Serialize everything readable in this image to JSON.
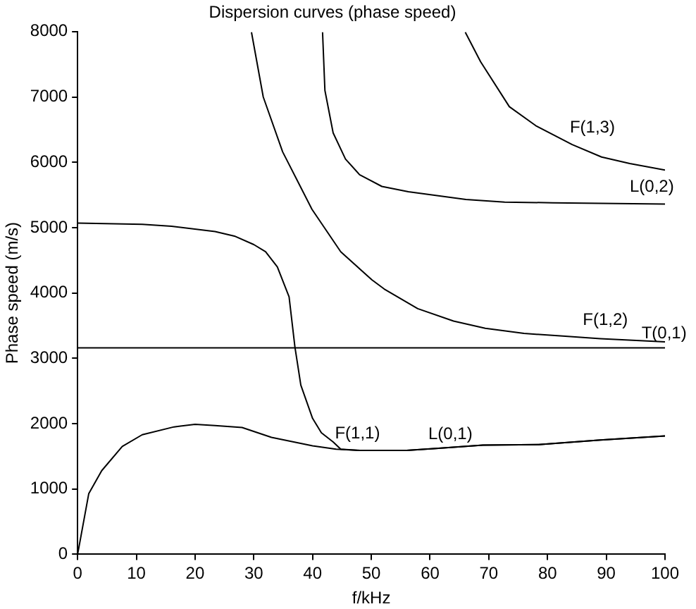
{
  "chart_data": {
    "type": "line",
    "title": "Dispersion curves (phase speed)",
    "xlabel": "f/kHz",
    "ylabel": "Phase speed (m/s)",
    "xlim": [
      0,
      100
    ],
    "ylim": [
      0,
      8000
    ],
    "xticks": [
      0,
      10,
      20,
      30,
      40,
      50,
      60,
      70,
      80,
      90,
      100
    ],
    "yticks": [
      0,
      1000,
      2000,
      3000,
      4000,
      5000,
      6000,
      7000,
      8000
    ],
    "grid": false,
    "legend": false,
    "marker": "none",
    "line_style": "solid",
    "series": [
      {
        "color": "#000000",
        "x": [
          0,
          1.9,
          4.1,
          7.6,
          11,
          16.4,
          20,
          23.4,
          28,
          33,
          40,
          44,
          48,
          56,
          61,
          69,
          78.5,
          89,
          100
        ],
        "values": [
          0,
          930,
          1280,
          1650,
          1830,
          1950,
          1990,
          1970,
          1940,
          1790,
          1660,
          1610,
          1590,
          1590,
          1620,
          1670,
          1680,
          1750,
          1810
        ]
      },
      {
        "color": "#000000",
        "x": [
          0,
          11,
          16,
          23.4,
          26.7,
          30,
          32,
          34,
          36,
          37,
          38,
          40,
          41.5,
          43.5,
          44.8,
          48,
          56,
          61,
          69,
          78.5,
          89,
          100
        ],
        "values": [
          5070,
          5050,
          5020,
          4940,
          4870,
          4740,
          4630,
          4400,
          3940,
          3170,
          2590,
          2080,
          1860,
          1720,
          1610,
          1590,
          1590,
          1620,
          1670,
          1680,
          1750,
          1810
        ]
      },
      {
        "color": "#000000",
        "x": [
          29.6,
          31.6,
          34.9,
          39.9,
          44.8,
          50.1,
          52.2,
          57.9,
          64,
          69.4,
          76,
          82.6,
          89,
          100
        ],
        "values": [
          7990,
          7000,
          6160,
          5280,
          4630,
          4200,
          4060,
          3760,
          3570,
          3460,
          3380,
          3340,
          3300,
          3250
        ]
      },
      {
        "color": "#000000",
        "x": [
          41.7,
          42.1,
          43.5,
          45.6,
          48,
          51.8,
          56.3,
          66.1,
          72.7,
          80.9,
          100
        ],
        "values": [
          7990,
          7100,
          6450,
          6050,
          5810,
          5630,
          5550,
          5430,
          5390,
          5380,
          5360
        ]
      },
      {
        "color": "#000000",
        "x": [
          66,
          68.6,
          73.5,
          78,
          84.2,
          89.2,
          94,
          100
        ],
        "values": [
          7990,
          7540,
          6850,
          6560,
          6270,
          6080,
          5980,
          5880
        ]
      },
      {
        "color": "#000000",
        "x": [
          0,
          100
        ],
        "values": [
          3160,
          3160
        ]
      }
    ],
    "annotations": [
      {
        "text": "F(1,3)",
        "x": 83.8,
        "y": 6270
      },
      {
        "text": "L(0,2)",
        "x": 94,
        "y": 5360
      },
      {
        "text": "F(1,2)",
        "x": 86,
        "y": 3320
      },
      {
        "text": "T(0,1)",
        "x": 96,
        "y": 3115
      },
      {
        "text": "F(1,1)",
        "x": 43.8,
        "y": 1590
      },
      {
        "text": "L(0,1)",
        "x": 59.7,
        "y": 1570
      }
    ]
  }
}
